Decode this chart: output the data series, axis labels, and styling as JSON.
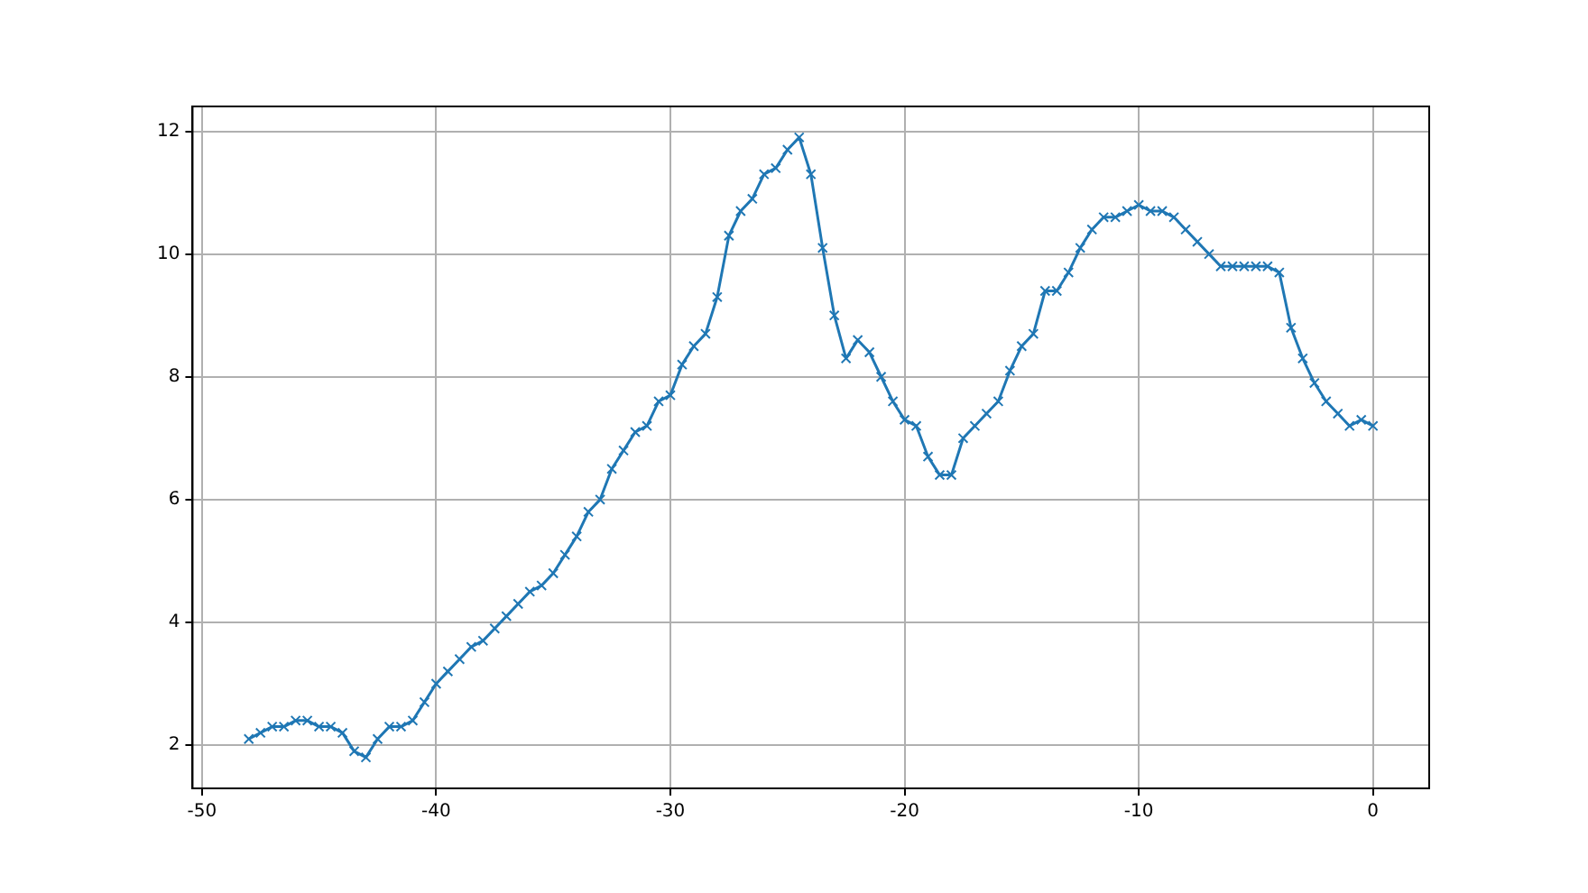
{
  "chart_data": {
    "type": "line",
    "x": [
      -48,
      -47.5,
      -47,
      -46.5,
      -46,
      -45.5,
      -45,
      -44.5,
      -44,
      -43.5,
      -43,
      -42.5,
      -42,
      -41.5,
      -41,
      -40.5,
      -40,
      -39.5,
      -39,
      -38.5,
      -38,
      -37.5,
      -37,
      -36.5,
      -36,
      -35.5,
      -35,
      -34.5,
      -34,
      -33.5,
      -33,
      -32.5,
      -32,
      -31.5,
      -31,
      -30.5,
      -30,
      -29.5,
      -29,
      -28.5,
      -28,
      -27.5,
      -27,
      -26.5,
      -26,
      -25.5,
      -25,
      -24.5,
      -24,
      -23.5,
      -23,
      -22.5,
      -22,
      -21.5,
      -21,
      -20.5,
      -20,
      -19.5,
      -19,
      -18.5,
      -18,
      -17.5,
      -17,
      -16.5,
      -16,
      -15.5,
      -15,
      -14.5,
      -14,
      -13.5,
      -13,
      -12.5,
      -12,
      -11.5,
      -11,
      -10.5,
      -10,
      -9.5,
      -9,
      -8.5,
      -8,
      -7.5,
      -7,
      -6.5,
      -6,
      -5.5,
      -5,
      -4.5,
      -4,
      -3.5,
      -3,
      -2.5,
      -2,
      -1.5,
      -1,
      -0.5,
      0
    ],
    "series": [
      {
        "color": "#1f77b4",
        "values": [
          2.1,
          2.2,
          2.3,
          2.3,
          2.4,
          2.4,
          2.3,
          2.3,
          2.2,
          1.9,
          1.8,
          2.1,
          2.3,
          2.3,
          2.4,
          2.7,
          3.0,
          3.2,
          3.4,
          3.6,
          3.7,
          3.9,
          4.1,
          4.3,
          4.5,
          4.6,
          4.8,
          5.1,
          5.4,
          5.8,
          6.0,
          6.5,
          6.8,
          7.1,
          7.2,
          7.6,
          7.7,
          8.2,
          8.5,
          8.7,
          9.3,
          10.3,
          10.7,
          10.9,
          11.3,
          11.4,
          11.7,
          11.9,
          11.3,
          10.1,
          9.0,
          8.3,
          8.6,
          8.4,
          8.0,
          7.6,
          7.3,
          7.2,
          6.7,
          6.4,
          6.4,
          7.0,
          7.2,
          7.4,
          7.6,
          8.1,
          8.5,
          8.7,
          9.4,
          9.4,
          9.7,
          10.1,
          10.4,
          10.6,
          10.6,
          10.7,
          10.8,
          10.7,
          10.7,
          10.6,
          10.4,
          10.2,
          10.0,
          9.8,
          9.8,
          9.8,
          9.8,
          9.8,
          9.7,
          8.8,
          8.3,
          7.9,
          7.6,
          7.4,
          7.2,
          7.3,
          7.2
        ]
      }
    ],
    "xlim": [
      -50.4,
      2.4
    ],
    "xticks": [
      -50,
      -40,
      -30,
      -20,
      -10,
      0
    ],
    "ylim": [
      1.295,
      12.405
    ],
    "yticks": [
      2,
      4,
      6,
      8,
      10,
      12
    ],
    "grid": true,
    "marker": "cross",
    "line_style": "solid"
  }
}
